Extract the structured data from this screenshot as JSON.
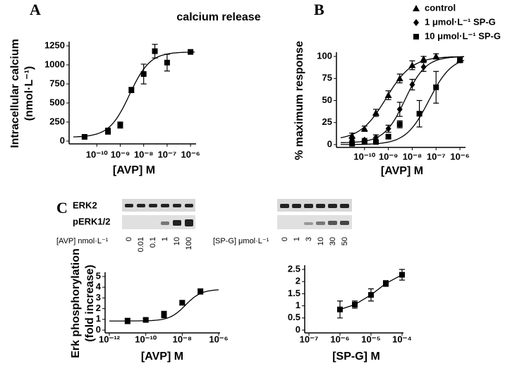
{
  "chart_data": [
    {
      "panel": "A",
      "type": "scatter",
      "title": "calcium release",
      "ylabel": [
        "Intracellular calcium",
        "(nmol·L⁻¹)"
      ],
      "xlabel": "[AVP] M",
      "xscale": "log",
      "xlim": [
        1e-11,
        1.5e-06
      ],
      "xticks": [
        {
          "value": 1e-10,
          "label": "10⁻¹⁰"
        },
        {
          "value": 1e-09,
          "label": "10⁻⁹"
        },
        {
          "value": 1e-08,
          "label": "10⁻⁸"
        },
        {
          "value": 1e-07,
          "label": "10⁻⁷"
        },
        {
          "value": 1e-06,
          "label": "10⁻⁶"
        }
      ],
      "ylim": [
        0,
        1250
      ],
      "yticks": [
        0,
        250,
        500,
        750,
        1000,
        1250
      ],
      "series": [
        {
          "marker": "square",
          "color": "#000000",
          "x": [
            3e-11,
            3e-10,
            1e-09,
            3e-09,
            1e-08,
            3e-08,
            1e-07,
            1e-06
          ],
          "values": [
            55,
            130,
            210,
            670,
            880,
            1180,
            1030,
            1170
          ],
          "errors": [
            0,
            40,
            40,
            35,
            130,
            90,
            110,
            0
          ],
          "fit": {
            "bottom": 50,
            "top": 1170,
            "ec50": 2.5e-09,
            "hill": 1
          }
        }
      ]
    },
    {
      "panel": "B",
      "type": "scatter",
      "ylabel": [
        "% maximum response"
      ],
      "xlabel": "[AVP] M",
      "xscale": "log",
      "legend": "top-right",
      "xlim": [
        1e-11,
        1.5e-06
      ],
      "xticks": [
        {
          "value": 1e-10,
          "label": "10⁻¹⁰"
        },
        {
          "value": 1e-09,
          "label": "10⁻⁹"
        },
        {
          "value": 1e-08,
          "label": "10⁻⁸"
        },
        {
          "value": 1e-07,
          "label": "10⁻⁷"
        },
        {
          "value": 1e-06,
          "label": "10⁻⁶"
        }
      ],
      "ylim": [
        0,
        100
      ],
      "yticks": [
        0,
        25,
        50,
        75,
        100
      ],
      "series": [
        {
          "name": "control",
          "marker": "triangle",
          "color": "#000000",
          "x": [
            3e-11,
            1e-10,
            3e-10,
            1e-09,
            3e-09,
            1e-08,
            3e-08,
            1e-07,
            1e-06
          ],
          "values": [
            10,
            18,
            36,
            56,
            75,
            90,
            97,
            100,
            96
          ],
          "errors": [
            3,
            3,
            4,
            5,
            5,
            5,
            3,
            3,
            3
          ],
          "fit": {
            "bottom": 5,
            "top": 100,
            "ec50": 8e-10,
            "hill": 0.8
          }
        },
        {
          "name": "1 μmol·L⁻¹ SP-G",
          "marker": "diamond",
          "color": "#000000",
          "x": [
            3e-11,
            1e-10,
            3e-10,
            1e-09,
            3e-09,
            1e-08,
            3e-08,
            1e-06
          ],
          "values": [
            5,
            5,
            8,
            18,
            40,
            68,
            88,
            96
          ],
          "errors": [
            2,
            2,
            3,
            4,
            8,
            6,
            5,
            3
          ],
          "fit": {
            "bottom": 2,
            "top": 100,
            "ec50": 5e-09,
            "hill": 1
          }
        },
        {
          "name": "10 μmol·L⁻¹ SP-G",
          "marker": "square",
          "color": "#000000",
          "x": [
            3e-11,
            1e-10,
            3e-10,
            1e-09,
            3e-09,
            2e-08,
            1e-07,
            1e-06
          ],
          "values": [
            1,
            3,
            3,
            9,
            23,
            35,
            65,
            96
          ],
          "errors": [
            1,
            1,
            1,
            2,
            4,
            15,
            18,
            3
          ],
          "fit": {
            "bottom": 0,
            "top": 100,
            "ec50": 5e-08,
            "hill": 0.9
          }
        }
      ]
    },
    {
      "type": "scatter",
      "ylabel": [
        "Erk phosphorylation",
        "(fold increase)"
      ],
      "xlabel": "[AVP] M",
      "xscale": "log",
      "xlim": [
        1e-12,
        1e-06
      ],
      "xticks": [
        {
          "value": 1e-12,
          "label": "10⁻¹²"
        },
        {
          "value": 1e-10,
          "label": "10⁻¹⁰"
        },
        {
          "value": 1e-08,
          "label": "10⁻⁸"
        },
        {
          "value": 1e-06,
          "label": "10⁻⁶"
        }
      ],
      "ylim": [
        0,
        5
      ],
      "yticks": [
        0,
        1,
        2,
        3,
        4,
        5
      ],
      "series": [
        {
          "marker": "square",
          "color": "#000000",
          "x": [
            1e-11,
            1e-10,
            1e-09,
            1e-08,
            1e-07
          ],
          "values": [
            0.85,
            0.95,
            1.45,
            2.55,
            3.6
          ],
          "errors": [
            0.25,
            0.15,
            0.3,
            0.2,
            0.25
          ],
          "fit": {
            "bottom": 0.85,
            "top": 3.8,
            "ec50": 1.5e-08,
            "hill": 1
          }
        }
      ]
    },
    {
      "type": "line",
      "xlabel": "[SP-G] M",
      "xscale": "log",
      "xlim": [
        1e-07,
        0.0001
      ],
      "xticks": [
        {
          "value": 1e-07,
          "label": "10⁻⁷"
        },
        {
          "value": 1e-06,
          "label": "10⁻⁶"
        },
        {
          "value": 1e-05,
          "label": "10⁻⁵"
        },
        {
          "value": 0.0001,
          "label": "10⁻⁴"
        }
      ],
      "ylim": [
        0,
        2.5
      ],
      "yticks": [
        0,
        0.5,
        1,
        1.5,
        2,
        2.5
      ],
      "series": [
        {
          "marker": "square",
          "color": "#000000",
          "x": [
            1e-06,
            3e-06,
            1e-05,
            3e-05,
            0.0001
          ],
          "values": [
            0.85,
            1.05,
            1.45,
            1.92,
            2.28
          ],
          "errors": [
            0.35,
            0.15,
            0.25,
            0.12,
            0.22
          ]
        }
      ]
    }
  ],
  "blot": {
    "panel": "C",
    "rows": [
      "ERK2",
      "pERK1/2"
    ],
    "groups": [
      {
        "label": "[AVP] nmol·L⁻¹",
        "lanes": [
          "0",
          "0.01",
          "0.1",
          "1",
          "10",
          "100"
        ]
      },
      {
        "label": "[SP-G] μmol·L⁻¹",
        "lanes": [
          "0",
          "1",
          "3",
          "10",
          "30",
          "50"
        ]
      }
    ]
  }
}
